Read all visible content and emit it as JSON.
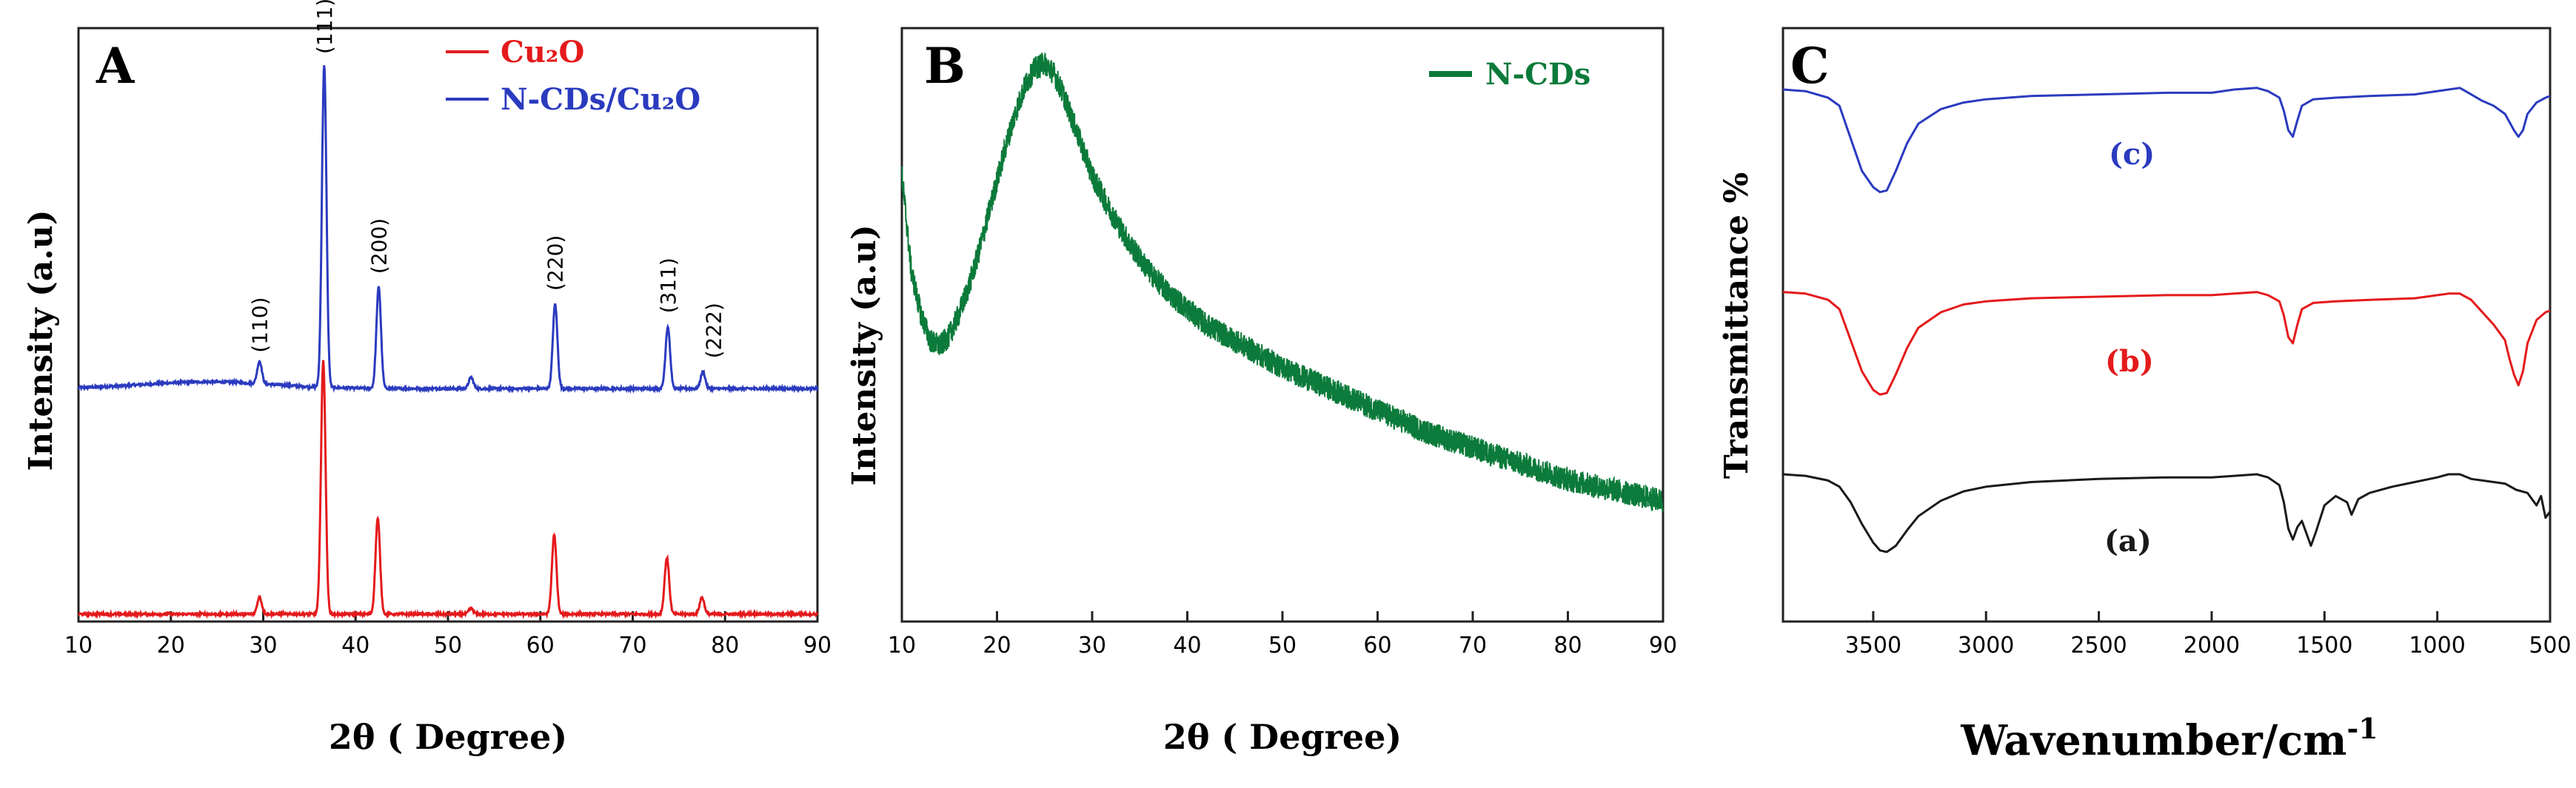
{
  "colors": {
    "red": "#e41a1c",
    "blue": "#2b3bbf",
    "green": "#0b7a3a",
    "black": "#1a1a1a"
  },
  "chart_data": [
    {
      "panel": "A",
      "type": "line",
      "xlabel": "2θ ( Degree)",
      "ylabel": "Intensity (a.u)",
      "xlim": [
        10,
        90
      ],
      "xticks": [
        "10",
        "20",
        "30",
        "40",
        "50",
        "60",
        "70",
        "80",
        "90"
      ],
      "legend": [
        {
          "label": "Cu₂O",
          "color": "#e41a1c"
        },
        {
          "label": "N-CDs/Cu₂O",
          "color": "#2b3bbf"
        }
      ],
      "peak_labels": [
        {
          "label": "(110)",
          "x": 29.6
        },
        {
          "label": "(111)",
          "x": 36.6
        },
        {
          "label": "(200)",
          "x": 42.5
        },
        {
          "label": "(220)",
          "x": 61.6
        },
        {
          "label": "(311)",
          "x": 73.8
        },
        {
          "label": "(222)",
          "x": 77.6
        }
      ],
      "series": [
        {
          "name": "N-CDs/Cu₂O",
          "color": "#2b3bbf",
          "offset": 0.4,
          "peaks": [
            [
              29.6,
              0.04
            ],
            [
              36.6,
              0.57
            ],
            [
              42.5,
              0.18
            ],
            [
              52.5,
              0.02
            ],
            [
              61.6,
              0.15
            ],
            [
              73.8,
              0.11
            ],
            [
              77.6,
              0.03
            ]
          ]
        },
        {
          "name": "Cu₂O",
          "color": "#e41a1c",
          "offset": 0.0,
          "peaks": [
            [
              29.6,
              0.03
            ],
            [
              36.5,
              0.45
            ],
            [
              42.4,
              0.17
            ],
            [
              52.5,
              0.01
            ],
            [
              61.5,
              0.14
            ],
            [
              73.7,
              0.1
            ],
            [
              77.5,
              0.03
            ]
          ]
        }
      ]
    },
    {
      "panel": "B",
      "type": "line",
      "xlabel": "2θ ( Degree)",
      "ylabel": "Intensity (a.u)",
      "xlim": [
        10,
        90
      ],
      "xticks": [
        "10",
        "20",
        "30",
        "40",
        "50",
        "60",
        "70",
        "80",
        "90"
      ],
      "legend": [
        {
          "label": "N-CDs",
          "color": "#0b7a3a"
        }
      ],
      "series": [
        {
          "name": "N-CDs",
          "color": "#0b7a3a",
          "x": [
            10,
            11,
            12,
            13,
            14,
            15,
            16,
            17,
            18,
            19,
            20,
            21,
            22,
            23,
            24,
            25,
            26,
            27,
            28,
            29,
            30,
            32,
            34,
            36,
            38,
            40,
            42,
            44,
            46,
            48,
            50,
            55,
            60,
            65,
            70,
            75,
            80,
            85,
            90
          ],
          "y": [
            0.78,
            0.6,
            0.52,
            0.47,
            0.46,
            0.48,
            0.52,
            0.57,
            0.63,
            0.7,
            0.77,
            0.84,
            0.9,
            0.95,
            0.98,
            0.99,
            0.97,
            0.93,
            0.88,
            0.83,
            0.78,
            0.71,
            0.65,
            0.6,
            0.56,
            0.53,
            0.5,
            0.48,
            0.46,
            0.44,
            0.42,
            0.38,
            0.34,
            0.3,
            0.27,
            0.24,
            0.21,
            0.19,
            0.17
          ]
        }
      ]
    },
    {
      "panel": "C",
      "type": "line",
      "xlabel": "Wavenumber/cm",
      "xlabel_sup": "-1",
      "ylabel": "Transmittance %",
      "xlim": [
        3900,
        500
      ],
      "xticks": [
        "3500",
        "3000",
        "2500",
        "2000",
        "1500",
        "1000",
        "500"
      ],
      "series": [
        {
          "name": "(c)",
          "color": "#2b3bbf",
          "x": [
            3900,
            3800,
            3700,
            3650,
            3600,
            3550,
            3500,
            3470,
            3440,
            3400,
            3350,
            3300,
            3200,
            3100,
            3000,
            2800,
            2500,
            2200,
            2000,
            1900,
            1800,
            1750,
            1700,
            1680,
            1660,
            1640,
            1620,
            1600,
            1550,
            1450,
            1300,
            1100,
            950,
            900,
            850,
            800,
            750,
            700,
            680,
            660,
            640,
            620,
            600,
            560,
            520,
            500
          ],
          "y": [
            0.95,
            0.94,
            0.9,
            0.85,
            0.65,
            0.45,
            0.35,
            0.32,
            0.33,
            0.45,
            0.62,
            0.74,
            0.83,
            0.87,
            0.89,
            0.91,
            0.92,
            0.93,
            0.93,
            0.95,
            0.96,
            0.94,
            0.9,
            0.82,
            0.7,
            0.66,
            0.76,
            0.85,
            0.89,
            0.9,
            0.91,
            0.92,
            0.95,
            0.96,
            0.92,
            0.88,
            0.85,
            0.8,
            0.75,
            0.7,
            0.66,
            0.7,
            0.8,
            0.87,
            0.9,
            0.91
          ]
        },
        {
          "name": "(b)",
          "color": "#e41a1c",
          "x": [
            3900,
            3800,
            3700,
            3650,
            3600,
            3550,
            3500,
            3470,
            3440,
            3400,
            3350,
            3300,
            3200,
            3100,
            3000,
            2800,
            2500,
            2200,
            2000,
            1900,
            1800,
            1750,
            1700,
            1680,
            1660,
            1640,
            1620,
            1600,
            1550,
            1450,
            1300,
            1100,
            950,
            900,
            850,
            800,
            750,
            700,
            680,
            660,
            640,
            620,
            600,
            560,
            520,
            500
          ],
          "y": [
            0.93,
            0.92,
            0.88,
            0.82,
            0.62,
            0.42,
            0.3,
            0.27,
            0.28,
            0.4,
            0.57,
            0.7,
            0.8,
            0.85,
            0.87,
            0.89,
            0.9,
            0.91,
            0.91,
            0.92,
            0.93,
            0.91,
            0.87,
            0.78,
            0.64,
            0.6,
            0.72,
            0.82,
            0.86,
            0.87,
            0.88,
            0.89,
            0.92,
            0.92,
            0.88,
            0.8,
            0.72,
            0.62,
            0.5,
            0.4,
            0.33,
            0.42,
            0.6,
            0.75,
            0.8,
            0.81
          ]
        },
        {
          "name": "(a)",
          "color": "#1a1a1a",
          "x": [
            3900,
            3800,
            3700,
            3650,
            3600,
            3550,
            3500,
            3470,
            3440,
            3400,
            3350,
            3300,
            3200,
            3100,
            3000,
            2800,
            2500,
            2200,
            2000,
            1900,
            1800,
            1750,
            1700,
            1680,
            1660,
            1640,
            1620,
            1600,
            1580,
            1560,
            1540,
            1500,
            1450,
            1400,
            1380,
            1350,
            1300,
            1200,
            1100,
            1000,
            950,
            900,
            850,
            800,
            700,
            650,
            600,
            560,
            540,
            520,
            500
          ],
          "y": [
            0.9,
            0.89,
            0.86,
            0.82,
            0.72,
            0.58,
            0.46,
            0.41,
            0.4,
            0.44,
            0.54,
            0.63,
            0.73,
            0.79,
            0.82,
            0.85,
            0.87,
            0.88,
            0.88,
            0.89,
            0.9,
            0.88,
            0.83,
            0.72,
            0.55,
            0.48,
            0.56,
            0.6,
            0.52,
            0.44,
            0.52,
            0.7,
            0.76,
            0.72,
            0.64,
            0.74,
            0.78,
            0.82,
            0.85,
            0.88,
            0.9,
            0.9,
            0.87,
            0.86,
            0.84,
            0.8,
            0.78,
            0.7,
            0.76,
            0.62,
            0.66
          ]
        }
      ]
    }
  ]
}
